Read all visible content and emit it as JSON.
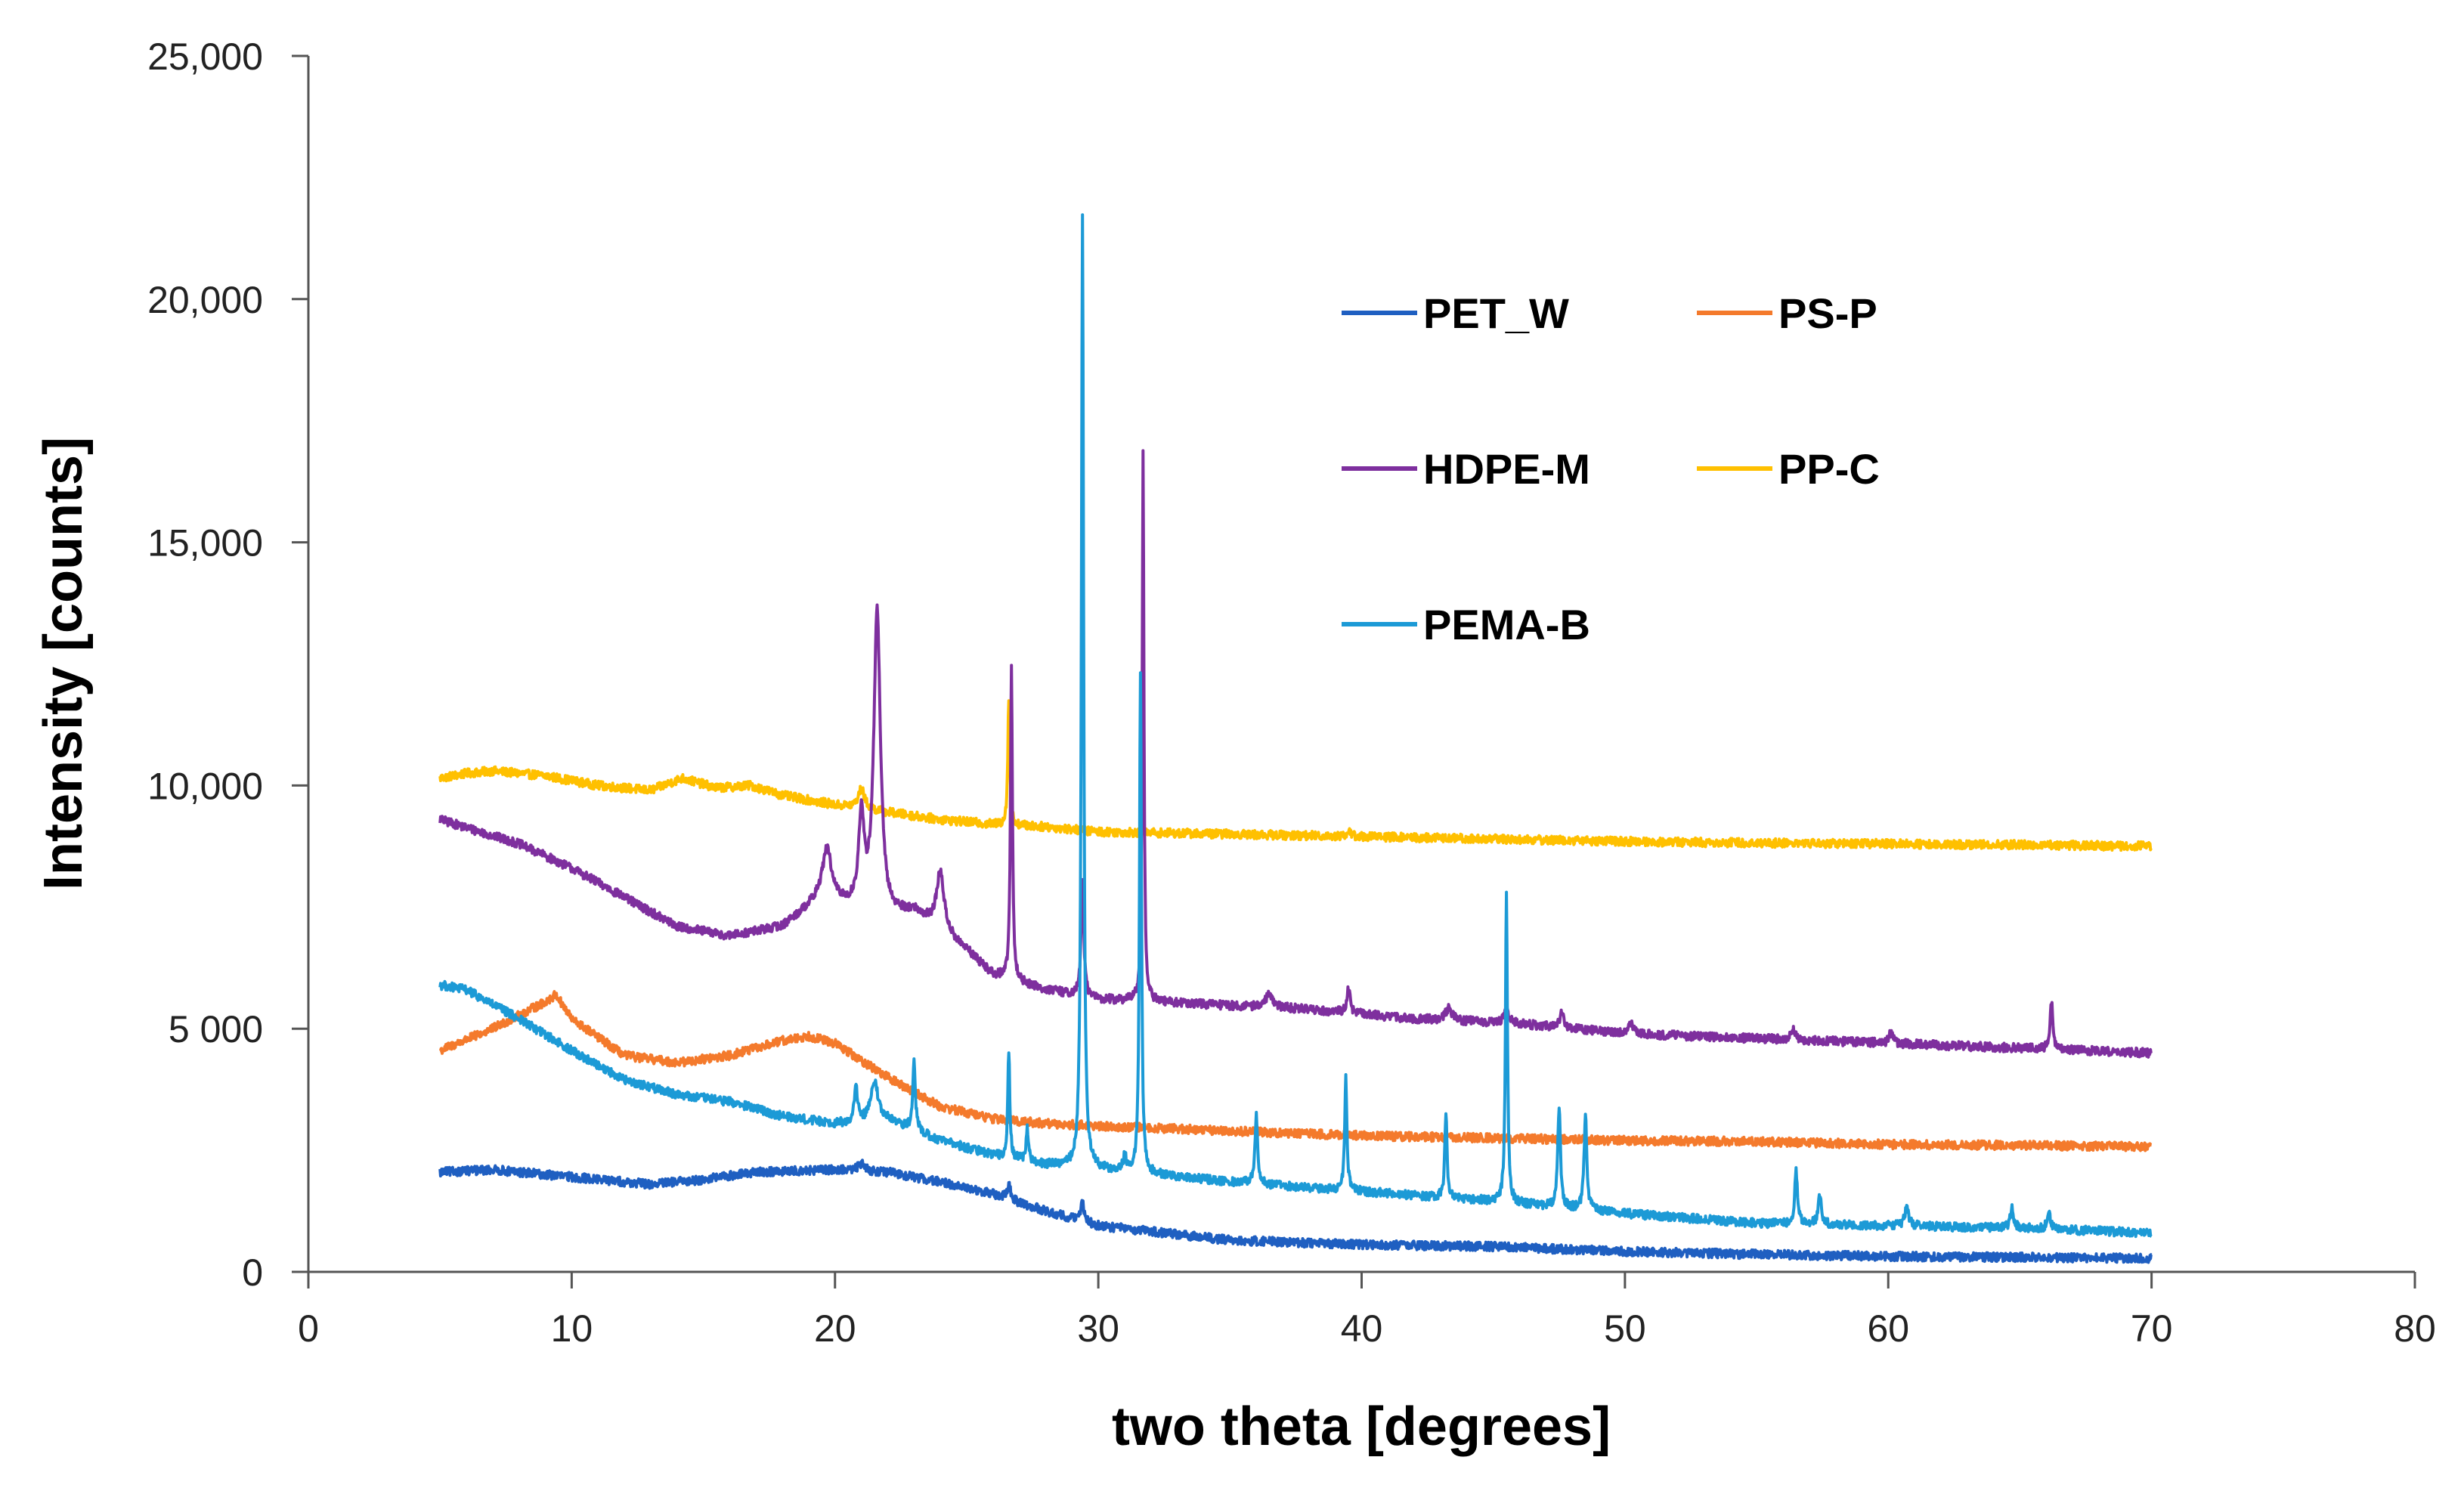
{
  "chart_data": {
    "type": "line",
    "title": "",
    "xlabel": "two theta [degrees]",
    "ylabel": "Intensity [counts]",
    "xlim": [
      0,
      80
    ],
    "ylim": [
      0,
      25000
    ],
    "x_ticks": [
      0,
      10,
      20,
      30,
      40,
      50,
      60,
      70,
      80
    ],
    "x_tick_labels": [
      "0",
      "10",
      "20",
      "30",
      "40",
      "50",
      "60",
      "70",
      "80"
    ],
    "y_ticks": [
      0,
      5000,
      10000,
      15000,
      20000,
      25000
    ],
    "y_tick_labels": [
      "0",
      "5 000",
      "10,000",
      "15,000",
      "20,000",
      "25,000"
    ],
    "grid": false,
    "legend_position": "top-right",
    "series": [
      {
        "name": "PET_W",
        "color": "#1F5FC1",
        "baseline": [
          [
            5,
            2050
          ],
          [
            7,
            2100
          ],
          [
            10,
            1950
          ],
          [
            13,
            1800
          ],
          [
            15,
            1900
          ],
          [
            17,
            2050
          ],
          [
            20,
            2100
          ],
          [
            22,
            2050
          ],
          [
            24,
            1850
          ],
          [
            26,
            1600
          ],
          [
            28,
            1250
          ],
          [
            30,
            950
          ],
          [
            35,
            650
          ],
          [
            40,
            560
          ],
          [
            45,
            520
          ],
          [
            50,
            420
          ],
          [
            55,
            360
          ],
          [
            60,
            320
          ],
          [
            65,
            300
          ],
          [
            70,
            280
          ]
        ],
        "peaks": [
          [
            21,
            150,
            0.3
          ],
          [
            26.6,
            300,
            0.15
          ],
          [
            29.4,
            400,
            0.15
          ]
        ]
      },
      {
        "name": "PS-P",
        "color": "#F47A2C",
        "baseline": [
          [
            5,
            4550
          ],
          [
            7,
            5000
          ],
          [
            9,
            5550
          ],
          [
            9.4,
            5700
          ],
          [
            10,
            5200
          ],
          [
            12,
            4450
          ],
          [
            14,
            4300
          ],
          [
            16,
            4450
          ],
          [
            18,
            4750
          ],
          [
            19,
            4850
          ],
          [
            20,
            4700
          ],
          [
            22,
            4000
          ],
          [
            24,
            3400
          ],
          [
            26,
            3150
          ],
          [
            28,
            3050
          ],
          [
            30,
            3000
          ],
          [
            35,
            2900
          ],
          [
            40,
            2800
          ],
          [
            45,
            2750
          ],
          [
            50,
            2700
          ],
          [
            55,
            2680
          ],
          [
            60,
            2620
          ],
          [
            65,
            2600
          ],
          [
            70,
            2580
          ]
        ],
        "peaks": []
      },
      {
        "name": "HDPE-M",
        "color": "#7E2F9E",
        "baseline": [
          [
            5,
            9300
          ],
          [
            8,
            8800
          ],
          [
            10,
            8300
          ],
          [
            12,
            7700
          ],
          [
            14,
            7100
          ],
          [
            16,
            6900
          ],
          [
            18,
            7100
          ],
          [
            19.5,
            7700
          ],
          [
            20.5,
            7500
          ],
          [
            22,
            7300
          ],
          [
            23,
            7400
          ],
          [
            25,
            6600
          ],
          [
            26,
            6100
          ],
          [
            28,
            5800
          ],
          [
            30,
            5600
          ],
          [
            34,
            5500
          ],
          [
            38,
            5400
          ],
          [
            42,
            5200
          ],
          [
            46,
            5100
          ],
          [
            50,
            4900
          ],
          [
            55,
            4800
          ],
          [
            60,
            4700
          ],
          [
            65,
            4600
          ],
          [
            70,
            4500
          ]
        ],
        "peaks": [
          [
            19.7,
            1000,
            0.4
          ],
          [
            21.0,
            1800,
            0.25
          ],
          [
            21.6,
            6200,
            0.3
          ],
          [
            24.0,
            1200,
            0.35
          ],
          [
            26.7,
            6400,
            0.09
          ],
          [
            29.4,
            2400,
            0.12
          ],
          [
            31.7,
            11300,
            0.08
          ],
          [
            36.5,
            300,
            0.3
          ],
          [
            39.5,
            500,
            0.15
          ],
          [
            43.3,
            250,
            0.3
          ],
          [
            45.5,
            300,
            0.2
          ],
          [
            47.6,
            300,
            0.2
          ],
          [
            50.2,
            250,
            0.2
          ],
          [
            56.4,
            200,
            0.2
          ],
          [
            60.1,
            200,
            0.2
          ],
          [
            66.2,
            1000,
            0.12
          ]
        ]
      },
      {
        "name": "PP-C",
        "color": "#FFC000",
        "baseline": [
          [
            5,
            10150
          ],
          [
            6,
            10250
          ],
          [
            7,
            10300
          ],
          [
            9,
            10200
          ],
          [
            11,
            10000
          ],
          [
            13,
            9900
          ],
          [
            14.2,
            10150
          ],
          [
            15.5,
            9950
          ],
          [
            16.8,
            10000
          ],
          [
            18,
            9800
          ],
          [
            20,
            9600
          ],
          [
            22,
            9450
          ],
          [
            24,
            9300
          ],
          [
            26,
            9200
          ],
          [
            28,
            9150
          ],
          [
            30,
            9050
          ],
          [
            35,
            9000
          ],
          [
            40,
            8950
          ],
          [
            45,
            8900
          ],
          [
            50,
            8850
          ],
          [
            55,
            8820
          ],
          [
            60,
            8800
          ],
          [
            65,
            8780
          ],
          [
            70,
            8750
          ]
        ],
        "peaks": [
          [
            21.0,
            400,
            0.3
          ],
          [
            26.6,
            2600,
            0.09
          ],
          [
            39.5,
            100,
            0.2
          ]
        ]
      },
      {
        "name": "PEMA-B",
        "color": "#1C9AD6",
        "baseline": [
          [
            5,
            5900
          ],
          [
            6,
            5800
          ],
          [
            8,
            5200
          ],
          [
            10,
            4550
          ],
          [
            12,
            3950
          ],
          [
            14,
            3650
          ],
          [
            16,
            3500
          ],
          [
            18,
            3200
          ],
          [
            20,
            3050
          ],
          [
            22,
            3100
          ],
          [
            24,
            2700
          ],
          [
            26,
            2400
          ],
          [
            28,
            2200
          ],
          [
            30,
            2100
          ],
          [
            32,
            2000
          ],
          [
            35,
            1850
          ],
          [
            40,
            1650
          ],
          [
            45,
            1450
          ],
          [
            50,
            1200
          ],
          [
            55,
            1000
          ],
          [
            60,
            950
          ],
          [
            65,
            900
          ],
          [
            70,
            800
          ]
        ],
        "peaks": [
          [
            20.8,
            700,
            0.15
          ],
          [
            21.5,
            800,
            0.35
          ],
          [
            23.0,
            1500,
            0.12
          ],
          [
            26.6,
            2200,
            0.09
          ],
          [
            27.3,
            700,
            0.1
          ],
          [
            29.4,
            19600,
            0.1
          ],
          [
            31.0,
            300,
            0.15
          ],
          [
            31.6,
            10300,
            0.09
          ],
          [
            36.0,
            1400,
            0.12
          ],
          [
            39.4,
            2300,
            0.1
          ],
          [
            43.2,
            1800,
            0.1
          ],
          [
            45.5,
            6400,
            0.09
          ],
          [
            47.5,
            2100,
            0.12
          ],
          [
            48.5,
            2000,
            0.12
          ],
          [
            56.5,
            1100,
            0.12
          ],
          [
            57.4,
            600,
            0.15
          ],
          [
            60.7,
            350,
            0.2
          ],
          [
            64.7,
            400,
            0.15
          ],
          [
            66.1,
            350,
            0.15
          ]
        ]
      }
    ]
  }
}
